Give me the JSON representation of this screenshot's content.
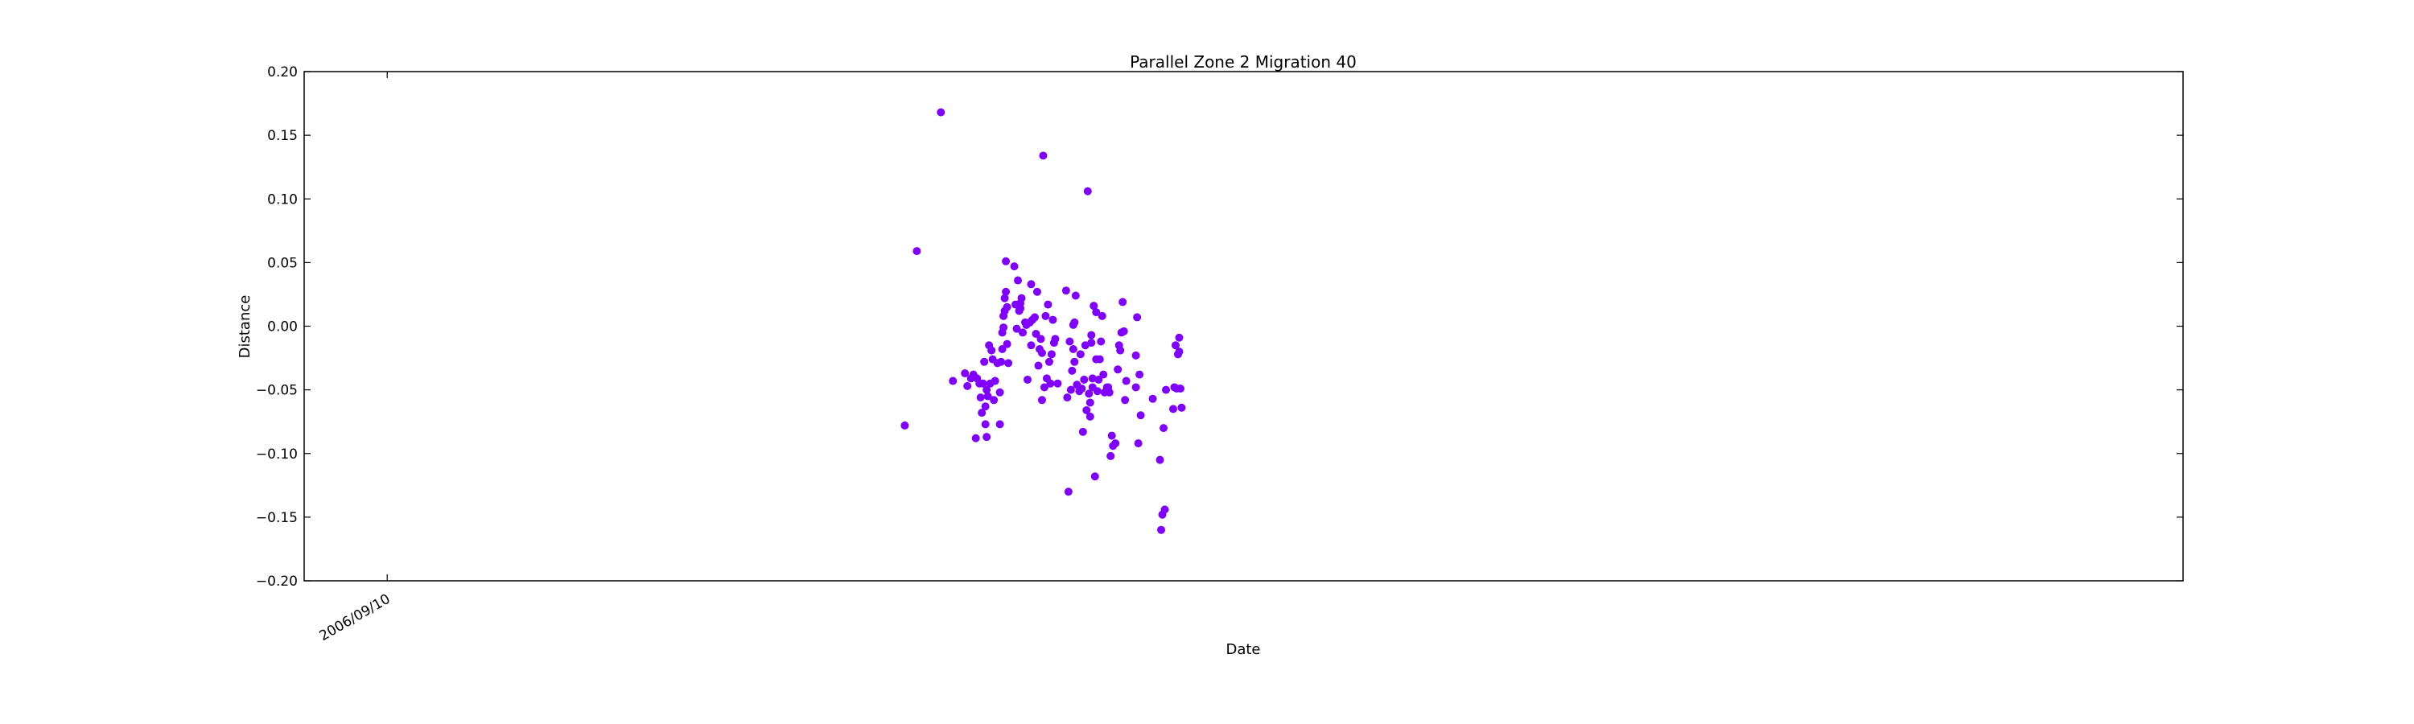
{
  "chart_data": {
    "type": "scatter",
    "title": "Parallel Zone 2 Migration 40",
    "xlabel": "Date",
    "ylabel": "Distance",
    "ylim": [
      -0.2,
      0.2
    ],
    "yticks": [
      0.2,
      0.15,
      0.1,
      0.05,
      0.0,
      -0.05,
      -0.1,
      -0.15,
      -0.2
    ],
    "ytick_labels": [
      "0.20",
      "0.15",
      "0.10",
      "0.05",
      "0.00",
      "−0.05",
      "−0.10",
      "−0.15",
      "−0.20"
    ],
    "xlim": [
      "2006-07-03",
      "2010-10-11"
    ],
    "xticks": [
      "2006-09-10"
    ],
    "xtick_labels": [
      "2006/09/10"
    ],
    "grid": false,
    "marker_color": "#7F00FF",
    "points": [
      {
        "x": "2007-11-14",
        "y": -0.078
      },
      {
        "x": "2007-11-24",
        "y": 0.059
      },
      {
        "x": "2007-12-14",
        "y": 0.168
      },
      {
        "x": "2007-12-24",
        "y": -0.043
      },
      {
        "x": "2008-01-03",
        "y": -0.037
      },
      {
        "x": "2008-01-05",
        "y": -0.047
      },
      {
        "x": "2008-01-08",
        "y": -0.041
      },
      {
        "x": "2008-01-10",
        "y": -0.038
      },
      {
        "x": "2008-01-12",
        "y": -0.088
      },
      {
        "x": "2008-01-13",
        "y": -0.041
      },
      {
        "x": "2008-01-15",
        "y": -0.045
      },
      {
        "x": "2008-01-16",
        "y": -0.056
      },
      {
        "x": "2008-01-17",
        "y": -0.068
      },
      {
        "x": "2008-01-18",
        "y": -0.045
      },
      {
        "x": "2008-01-19",
        "y": -0.028
      },
      {
        "x": "2008-01-20",
        "y": -0.063
      },
      {
        "x": "2008-01-20",
        "y": -0.077
      },
      {
        "x": "2008-01-21",
        "y": -0.05
      },
      {
        "x": "2008-01-21",
        "y": -0.087
      },
      {
        "x": "2008-01-22",
        "y": -0.055
      },
      {
        "x": "2008-01-23",
        "y": -0.015
      },
      {
        "x": "2008-01-24",
        "y": -0.045
      },
      {
        "x": "2008-01-25",
        "y": -0.019
      },
      {
        "x": "2008-01-26",
        "y": -0.026
      },
      {
        "x": "2008-01-27",
        "y": -0.058
      },
      {
        "x": "2008-01-28",
        "y": -0.043
      },
      {
        "x": "2008-01-30",
        "y": -0.029
      },
      {
        "x": "2008-02-01",
        "y": -0.077
      },
      {
        "x": "2008-02-01",
        "y": -0.052
      },
      {
        "x": "2008-02-02",
        "y": -0.028
      },
      {
        "x": "2008-02-03",
        "y": -0.018
      },
      {
        "x": "2008-02-03",
        "y": -0.005
      },
      {
        "x": "2008-02-04",
        "y": -0.001
      },
      {
        "x": "2008-02-04",
        "y": 0.008
      },
      {
        "x": "2008-02-05",
        "y": 0.012
      },
      {
        "x": "2008-02-05",
        "y": 0.022
      },
      {
        "x": "2008-02-06",
        "y": 0.027
      },
      {
        "x": "2008-02-06",
        "y": 0.051
      },
      {
        "x": "2008-02-07",
        "y": 0.015
      },
      {
        "x": "2008-02-07",
        "y": -0.014
      },
      {
        "x": "2008-02-08",
        "y": -0.029
      },
      {
        "x": "2008-02-13",
        "y": 0.047
      },
      {
        "x": "2008-02-14",
        "y": 0.017
      },
      {
        "x": "2008-02-15",
        "y": -0.002
      },
      {
        "x": "2008-02-16",
        "y": 0.036
      },
      {
        "x": "2008-02-17",
        "y": 0.012
      },
      {
        "x": "2008-02-18",
        "y": 0.014
      },
      {
        "x": "2008-02-18",
        "y": 0.018
      },
      {
        "x": "2008-02-19",
        "y": 0.022
      },
      {
        "x": "2008-02-20",
        "y": -0.005
      },
      {
        "x": "2008-02-22",
        "y": 0.003
      },
      {
        "x": "2008-02-23",
        "y": 0.001
      },
      {
        "x": "2008-02-24",
        "y": -0.042
      },
      {
        "x": "2008-02-26",
        "y": 0.003
      },
      {
        "x": "2008-02-27",
        "y": -0.015
      },
      {
        "x": "2008-02-27",
        "y": 0.033
      },
      {
        "x": "2008-02-28",
        "y": 0.005
      },
      {
        "x": "2008-03-01",
        "y": 0.007
      },
      {
        "x": "2008-03-02",
        "y": -0.006
      },
      {
        "x": "2008-03-03",
        "y": 0.027
      },
      {
        "x": "2008-03-04",
        "y": -0.031
      },
      {
        "x": "2008-03-05",
        "y": -0.018
      },
      {
        "x": "2008-03-06",
        "y": -0.01
      },
      {
        "x": "2008-03-07",
        "y": -0.021
      },
      {
        "x": "2008-03-07",
        "y": -0.058
      },
      {
        "x": "2008-03-08",
        "y": 0.134
      },
      {
        "x": "2008-03-09",
        "y": -0.048
      },
      {
        "x": "2008-03-10",
        "y": 0.008
      },
      {
        "x": "2008-03-11",
        "y": -0.041
      },
      {
        "x": "2008-03-12",
        "y": 0.017
      },
      {
        "x": "2008-03-13",
        "y": -0.028
      },
      {
        "x": "2008-03-14",
        "y": -0.045
      },
      {
        "x": "2008-03-15",
        "y": -0.022
      },
      {
        "x": "2008-03-16",
        "y": 0.005
      },
      {
        "x": "2008-03-17",
        "y": -0.013
      },
      {
        "x": "2008-03-18",
        "y": -0.01
      },
      {
        "x": "2008-03-20",
        "y": -0.045
      },
      {
        "x": "2008-03-27",
        "y": 0.028
      },
      {
        "x": "2008-03-28",
        "y": -0.056
      },
      {
        "x": "2008-03-29",
        "y": -0.13
      },
      {
        "x": "2008-03-30",
        "y": -0.012
      },
      {
        "x": "2008-03-31",
        "y": -0.05
      },
      {
        "x": "2008-04-01",
        "y": -0.035
      },
      {
        "x": "2008-04-02",
        "y": 0.001
      },
      {
        "x": "2008-04-02",
        "y": -0.018
      },
      {
        "x": "2008-04-03",
        "y": 0.003
      },
      {
        "x": "2008-04-03",
        "y": -0.028
      },
      {
        "x": "2008-04-04",
        "y": 0.024
      },
      {
        "x": "2008-04-05",
        "y": -0.046
      },
      {
        "x": "2008-04-07",
        "y": -0.051
      },
      {
        "x": "2008-04-08",
        "y": -0.022
      },
      {
        "x": "2008-04-09",
        "y": -0.049
      },
      {
        "x": "2008-04-10",
        "y": -0.083
      },
      {
        "x": "2008-04-11",
        "y": -0.042
      },
      {
        "x": "2008-04-12",
        "y": -0.015
      },
      {
        "x": "2008-04-13",
        "y": -0.066
      },
      {
        "x": "2008-04-14",
        "y": 0.106
      },
      {
        "x": "2008-04-15",
        "y": -0.053
      },
      {
        "x": "2008-04-16",
        "y": -0.071
      },
      {
        "x": "2008-04-16",
        "y": -0.06
      },
      {
        "x": "2008-04-17",
        "y": -0.013
      },
      {
        "x": "2008-04-17",
        "y": -0.007
      },
      {
        "x": "2008-04-18",
        "y": -0.048
      },
      {
        "x": "2008-04-18",
        "y": -0.041
      },
      {
        "x": "2008-04-19",
        "y": 0.016
      },
      {
        "x": "2008-04-20",
        "y": -0.118
      },
      {
        "x": "2008-04-21",
        "y": -0.026
      },
      {
        "x": "2008-04-21",
        "y": 0.011
      },
      {
        "x": "2008-04-22",
        "y": -0.051
      },
      {
        "x": "2008-04-23",
        "y": -0.042
      },
      {
        "x": "2008-04-24",
        "y": -0.026
      },
      {
        "x": "2008-04-25",
        "y": -0.012
      },
      {
        "x": "2008-04-26",
        "y": 0.008
      },
      {
        "x": "2008-04-27",
        "y": -0.038
      },
      {
        "x": "2008-04-28",
        "y": -0.052
      },
      {
        "x": "2008-04-30",
        "y": -0.048
      },
      {
        "x": "2008-05-01",
        "y": -0.048
      },
      {
        "x": "2008-05-02",
        "y": -0.052
      },
      {
        "x": "2008-05-03",
        "y": -0.102
      },
      {
        "x": "2008-05-04",
        "y": -0.086
      },
      {
        "x": "2008-05-05",
        "y": -0.094
      },
      {
        "x": "2008-05-07",
        "y": -0.092
      },
      {
        "x": "2008-05-09",
        "y": -0.034
      },
      {
        "x": "2008-05-10",
        "y": -0.015
      },
      {
        "x": "2008-05-11",
        "y": -0.019
      },
      {
        "x": "2008-05-12",
        "y": -0.005
      },
      {
        "x": "2008-05-13",
        "y": 0.019
      },
      {
        "x": "2008-05-14",
        "y": -0.004
      },
      {
        "x": "2008-05-15",
        "y": -0.058
      },
      {
        "x": "2008-05-16",
        "y": -0.043
      },
      {
        "x": "2008-05-24",
        "y": -0.048
      },
      {
        "x": "2008-05-24",
        "y": -0.023
      },
      {
        "x": "2008-05-25",
        "y": 0.007
      },
      {
        "x": "2008-05-26",
        "y": -0.092
      },
      {
        "x": "2008-05-27",
        "y": -0.038
      },
      {
        "x": "2008-05-28",
        "y": -0.07
      },
      {
        "x": "2008-06-07",
        "y": -0.057
      },
      {
        "x": "2008-06-13",
        "y": -0.105
      },
      {
        "x": "2008-06-14",
        "y": -0.16
      },
      {
        "x": "2008-06-15",
        "y": -0.148
      },
      {
        "x": "2008-06-16",
        "y": -0.08
      },
      {
        "x": "2008-06-17",
        "y": -0.144
      },
      {
        "x": "2008-06-18",
        "y": -0.05
      },
      {
        "x": "2008-06-24",
        "y": -0.065
      },
      {
        "x": "2008-06-25",
        "y": -0.048
      },
      {
        "x": "2008-06-26",
        "y": -0.015
      },
      {
        "x": "2008-06-27",
        "y": -0.049
      },
      {
        "x": "2008-06-28",
        "y": -0.022
      },
      {
        "x": "2008-06-29",
        "y": -0.02
      },
      {
        "x": "2008-06-29",
        "y": -0.009
      },
      {
        "x": "2008-06-30",
        "y": -0.049
      },
      {
        "x": "2008-07-01",
        "y": -0.064
      }
    ]
  }
}
